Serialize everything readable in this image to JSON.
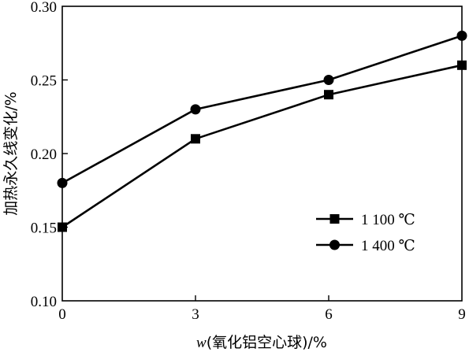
{
  "chart_data": {
    "type": "line",
    "x": [
      0,
      3,
      6,
      9
    ],
    "xticks": [
      "0",
      "3",
      "6",
      "9"
    ],
    "yticks": [
      "0.10",
      "0.15",
      "0.20",
      "0.25",
      "0.30"
    ],
    "xlim": [
      0,
      9
    ],
    "ylim": [
      0.1,
      0.3
    ],
    "xlabel_var": "w",
    "xlabel_rest": "(氧化铝空心球)/%",
    "ylabel": "加热永久线变化/%",
    "grid": false,
    "legend_position": "lower-right",
    "series": [
      {
        "name": "1 100 ℃",
        "marker": "square",
        "values": [
          0.15,
          0.21,
          0.24,
          0.26
        ]
      },
      {
        "name": "1 400 ℃",
        "marker": "circle",
        "values": [
          0.18,
          0.23,
          0.25,
          0.28
        ]
      }
    ]
  }
}
